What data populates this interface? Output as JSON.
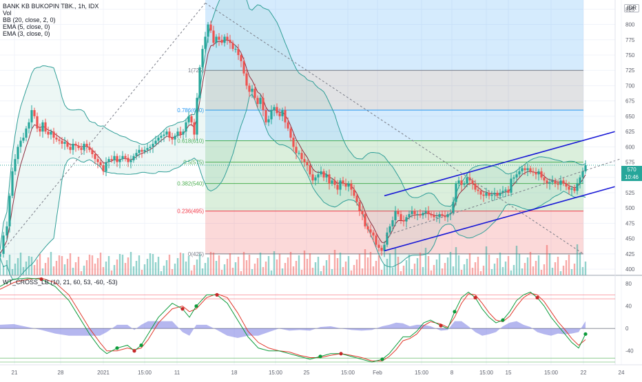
{
  "header": {
    "title": "BANK KB BUKOPIN TBK., 1h, IDX",
    "indicators": [
      "Vol",
      "BB (20, close, 2, 0)",
      "EMA (5, close, 0)",
      "EMA (3, close, 0)"
    ],
    "currency": "IDR",
    "oscillator_label": "WT_CROSS_LB (10, 21, 60, 53, -60, -53)"
  },
  "price_badge": {
    "last_price": "570",
    "countdown": "10:46"
  },
  "colors": {
    "up": "#26a69a",
    "down": "#ef5350",
    "bb": "#2f9e97",
    "bb_fill": "rgba(76,175,160,0.10)",
    "ema5": "#8d2b3d",
    "fib_blue": "rgba(66,165,245,0.22)",
    "fib_gray": "rgba(120,123,134,0.22)",
    "fib_green": "rgba(76,175,80,0.20)",
    "fib_red": "rgba(239,83,80,0.22)",
    "channel": "#1717d6",
    "wt1": "#0b9b3a",
    "wt2": "#e0382b",
    "wt_diff": "rgba(92,96,220,0.45)"
  },
  "chart_data": {
    "type": "candlestick",
    "title": "BANK KB BUKOPIN TBK., 1h, IDX",
    "y_axis": {
      "ticks": [
        400,
        425,
        450,
        475,
        500,
        525,
        550,
        575,
        600,
        625,
        650,
        675,
        700,
        725,
        750,
        775,
        800,
        825
      ],
      "range": [
        390,
        840
      ]
    },
    "x_axis": {
      "ticks": [
        "21",
        "28",
        "2021",
        "15:00",
        "11",
        "18",
        "15:00",
        "25",
        "15:00",
        "Feb",
        "15:00",
        "8",
        "15:00",
        "15",
        "15:00",
        "22",
        "24"
      ]
    },
    "fib_levels": [
      {
        "label": "1(725)",
        "value": 725
      },
      {
        "label": "0.786(660)",
        "value": 660
      },
      {
        "label": "0.618(610)",
        "value": 610
      },
      {
        "label": "0.5(575)",
        "value": 575
      },
      {
        "label": "0.382(540)",
        "value": 540
      },
      {
        "label": "0.236(495)",
        "value": 495
      },
      {
        "label": "0(425)",
        "value": 425
      }
    ],
    "close_path": [
      [
        0,
        425
      ],
      [
        5,
        455
      ],
      [
        10,
        470
      ],
      [
        14,
        520
      ],
      [
        18,
        560
      ],
      [
        22,
        580
      ],
      [
        26,
        600
      ],
      [
        30,
        610
      ],
      [
        34,
        615
      ],
      [
        38,
        630
      ],
      [
        42,
        640
      ],
      [
        46,
        660
      ],
      [
        50,
        650
      ],
      [
        54,
        630
      ],
      [
        58,
        625
      ],
      [
        62,
        640
      ],
      [
        66,
        625
      ],
      [
        70,
        620
      ],
      [
        74,
        625
      ],
      [
        78,
        615
      ],
      [
        82,
        612
      ],
      [
        86,
        610
      ],
      [
        90,
        605
      ],
      [
        94,
        608
      ],
      [
        98,
        600
      ],
      [
        102,
        595
      ],
      [
        106,
        605
      ],
      [
        110,
        602
      ],
      [
        114,
        598
      ],
      [
        118,
        595
      ],
      [
        122,
        605
      ],
      [
        126,
        600
      ],
      [
        130,
        595
      ],
      [
        134,
        588
      ],
      [
        138,
        580
      ],
      [
        142,
        575
      ],
      [
        146,
        570
      ],
      [
        150,
        560
      ],
      [
        154,
        575
      ],
      [
        158,
        580
      ],
      [
        162,
        578
      ],
      [
        166,
        585
      ],
      [
        170,
        575
      ],
      [
        174,
        580
      ],
      [
        178,
        585
      ],
      [
        182,
        582
      ],
      [
        186,
        575
      ],
      [
        190,
        578
      ],
      [
        194,
        585
      ],
      [
        198,
        590
      ],
      [
        202,
        595
      ],
      [
        206,
        592
      ],
      [
        210,
        595
      ],
      [
        214,
        598
      ],
      [
        218,
        600
      ],
      [
        222,
        605
      ],
      [
        226,
        610
      ],
      [
        230,
        615
      ],
      [
        234,
        618
      ],
      [
        238,
        620
      ],
      [
        242,
        625
      ],
      [
        246,
        615
      ],
      [
        250,
        612
      ],
      [
        254,
        618
      ],
      [
        258,
        625
      ],
      [
        262,
        620
      ],
      [
        266,
        625
      ],
      [
        270,
        640
      ],
      [
        274,
        650
      ],
      [
        278,
        640
      ],
      [
        282,
        620
      ],
      [
        286,
        680
      ],
      [
        290,
        730
      ],
      [
        294,
        760
      ],
      [
        298,
        780
      ],
      [
        302,
        800
      ],
      [
        306,
        790
      ],
      [
        310,
        770
      ],
      [
        314,
        780
      ],
      [
        318,
        775
      ],
      [
        322,
        770
      ],
      [
        326,
        780
      ],
      [
        330,
        775
      ],
      [
        334,
        770
      ],
      [
        338,
        760
      ],
      [
        342,
        760
      ],
      [
        346,
        750
      ],
      [
        350,
        740
      ],
      [
        354,
        720
      ],
      [
        358,
        700
      ],
      [
        362,
        690
      ],
      [
        366,
        695
      ],
      [
        370,
        680
      ],
      [
        374,
        670
      ],
      [
        378,
        680
      ],
      [
        382,
        660
      ],
      [
        386,
        640
      ],
      [
        390,
        645
      ],
      [
        394,
        660
      ],
      [
        398,
        665
      ],
      [
        402,
        655
      ],
      [
        406,
        650
      ],
      [
        410,
        660
      ],
      [
        414,
        640
      ],
      [
        418,
        630
      ],
      [
        422,
        615
      ],
      [
        426,
        600
      ],
      [
        430,
        590
      ],
      [
        434,
        590
      ],
      [
        438,
        580
      ],
      [
        442,
        575
      ],
      [
        446,
        570
      ],
      [
        450,
        555
      ],
      [
        454,
        545
      ],
      [
        458,
        550
      ],
      [
        462,
        555
      ],
      [
        466,
        560
      ],
      [
        470,
        550
      ],
      [
        474,
        555
      ],
      [
        478,
        540
      ],
      [
        482,
        545
      ],
      [
        486,
        538
      ],
      [
        490,
        530
      ],
      [
        494,
        545
      ],
      [
        498,
        540
      ],
      [
        502,
        535
      ],
      [
        506,
        540
      ],
      [
        510,
        530
      ],
      [
        514,
        520
      ],
      [
        518,
        510
      ],
      [
        522,
        495
      ],
      [
        526,
        490
      ],
      [
        530,
        470
      ],
      [
        534,
        465
      ],
      [
        538,
        460
      ],
      [
        542,
        455
      ],
      [
        546,
        440
      ],
      [
        550,
        435
      ],
      [
        554,
        430
      ],
      [
        558,
        440
      ],
      [
        562,
        460
      ],
      [
        566,
        470
      ],
      [
        570,
        480
      ],
      [
        574,
        495
      ],
      [
        578,
        490
      ],
      [
        582,
        480
      ],
      [
        586,
        478
      ],
      [
        590,
        485
      ],
      [
        594,
        490
      ],
      [
        598,
        495
      ],
      [
        602,
        490
      ],
      [
        606,
        490
      ],
      [
        610,
        488
      ],
      [
        614,
        492
      ],
      [
        618,
        495
      ],
      [
        622,
        490
      ],
      [
        626,
        488
      ],
      [
        630,
        485
      ],
      [
        634,
        485
      ],
      [
        638,
        490
      ],
      [
        642,
        488
      ],
      [
        646,
        485
      ],
      [
        650,
        490
      ],
      [
        654,
        492
      ],
      [
        658,
        510
      ],
      [
        662,
        540
      ],
      [
        666,
        545
      ],
      [
        670,
        538
      ],
      [
        674,
        540
      ],
      [
        678,
        550
      ],
      [
        682,
        545
      ],
      [
        686,
        540
      ],
      [
        690,
        530
      ],
      [
        694,
        528
      ],
      [
        698,
        522
      ],
      [
        702,
        520
      ],
      [
        706,
        525
      ],
      [
        710,
        520
      ],
      [
        714,
        522
      ],
      [
        718,
        525
      ],
      [
        722,
        520
      ],
      [
        726,
        525
      ],
      [
        730,
        528
      ],
      [
        734,
        530
      ],
      [
        738,
        525
      ],
      [
        742,
        548
      ],
      [
        746,
        550
      ],
      [
        750,
        555
      ],
      [
        754,
        560
      ],
      [
        758,
        565
      ],
      [
        762,
        562
      ],
      [
        766,
        565
      ],
      [
        770,
        560
      ],
      [
        774,
        558
      ],
      [
        778,
        555
      ],
      [
        782,
        560
      ],
      [
        786,
        550
      ],
      [
        790,
        545
      ],
      [
        794,
        540
      ],
      [
        798,
        542
      ],
      [
        802,
        545
      ],
      [
        806,
        540
      ],
      [
        810,
        538
      ],
      [
        814,
        545
      ],
      [
        818,
        540
      ],
      [
        822,
        535
      ],
      [
        826,
        530
      ],
      [
        830,
        532
      ],
      [
        834,
        528
      ],
      [
        838,
        540
      ],
      [
        842,
        550
      ],
      [
        846,
        560
      ],
      [
        850,
        570
      ]
    ],
    "channel_upper": [
      [
        558,
        520
      ],
      [
        893,
        625
      ]
    ],
    "channel_lower": [
      [
        558,
        430
      ],
      [
        893,
        535
      ]
    ],
    "oscillator": {
      "range": [
        -60,
        90
      ],
      "ticks": [
        80,
        40,
        0,
        -40
      ],
      "levels": [
        60,
        53,
        -60,
        -53
      ],
      "wt1_path": [
        [
          0,
          75
        ],
        [
          20,
          88
        ],
        [
          40,
          90
        ],
        [
          60,
          88
        ],
        [
          80,
          75
        ],
        [
          100,
          50
        ],
        [
          115,
          20
        ],
        [
          130,
          -10
        ],
        [
          145,
          -35
        ],
        [
          155,
          -45
        ],
        [
          170,
          -35
        ],
        [
          185,
          -30
        ],
        [
          195,
          -40
        ],
        [
          205,
          -30
        ],
        [
          215,
          -10
        ],
        [
          230,
          20
        ],
        [
          250,
          45
        ],
        [
          265,
          35
        ],
        [
          275,
          20
        ],
        [
          285,
          40
        ],
        [
          300,
          60
        ],
        [
          315,
          60
        ],
        [
          330,
          45
        ],
        [
          345,
          15
        ],
        [
          360,
          -15
        ],
        [
          375,
          -35
        ],
        [
          390,
          -40
        ],
        [
          405,
          -40
        ],
        [
          420,
          -45
        ],
        [
          435,
          -50
        ],
        [
          450,
          -55
        ],
        [
          465,
          -50
        ],
        [
          480,
          -45
        ],
        [
          495,
          -45
        ],
        [
          510,
          -50
        ],
        [
          525,
          -55
        ],
        [
          540,
          -60
        ],
        [
          555,
          -55
        ],
        [
          565,
          -45
        ],
        [
          575,
          -30
        ],
        [
          585,
          -15
        ],
        [
          595,
          -15
        ],
        [
          605,
          -5
        ],
        [
          615,
          10
        ],
        [
          625,
          15
        ],
        [
          640,
          5
        ],
        [
          650,
          0
        ],
        [
          660,
          30
        ],
        [
          670,
          55
        ],
        [
          680,
          65
        ],
        [
          690,
          55
        ],
        [
          700,
          35
        ],
        [
          710,
          20
        ],
        [
          720,
          10
        ],
        [
          730,
          15
        ],
        [
          740,
          30
        ],
        [
          750,
          50
        ],
        [
          760,
          60
        ],
        [
          770,
          65
        ],
        [
          780,
          55
        ],
        [
          790,
          40
        ],
        [
          800,
          20
        ],
        [
          810,
          5
        ],
        [
          820,
          -10
        ],
        [
          830,
          -25
        ],
        [
          840,
          -35
        ],
        [
          850,
          -10
        ]
      ],
      "wt2_path": [
        [
          0,
          70
        ],
        [
          20,
          82
        ],
        [
          40,
          88
        ],
        [
          60,
          90
        ],
        [
          80,
          82
        ],
        [
          100,
          60
        ],
        [
          115,
          30
        ],
        [
          130,
          0
        ],
        [
          145,
          -25
        ],
        [
          155,
          -40
        ],
        [
          170,
          -40
        ],
        [
          185,
          -35
        ],
        [
          195,
          -38
        ],
        [
          205,
          -35
        ],
        [
          215,
          -20
        ],
        [
          230,
          10
        ],
        [
          250,
          35
        ],
        [
          265,
          40
        ],
        [
          275,
          30
        ],
        [
          285,
          35
        ],
        [
          300,
          55
        ],
        [
          315,
          62
        ],
        [
          330,
          55
        ],
        [
          345,
          28
        ],
        [
          360,
          -5
        ],
        [
          375,
          -25
        ],
        [
          390,
          -35
        ],
        [
          405,
          -40
        ],
        [
          420,
          -42
        ],
        [
          435,
          -48
        ],
        [
          450,
          -52
        ],
        [
          465,
          -52
        ],
        [
          480,
          -48
        ],
        [
          495,
          -45
        ],
        [
          510,
          -48
        ],
        [
          525,
          -52
        ],
        [
          540,
          -58
        ],
        [
          555,
          -58
        ],
        [
          565,
          -50
        ],
        [
          575,
          -38
        ],
        [
          585,
          -22
        ],
        [
          595,
          -18
        ],
        [
          605,
          -10
        ],
        [
          615,
          5
        ],
        [
          625,
          12
        ],
        [
          640,
          8
        ],
        [
          650,
          2
        ],
        [
          660,
          20
        ],
        [
          670,
          45
        ],
        [
          680,
          62
        ],
        [
          690,
          60
        ],
        [
          700,
          45
        ],
        [
          710,
          28
        ],
        [
          720,
          15
        ],
        [
          730,
          12
        ],
        [
          740,
          22
        ],
        [
          750,
          40
        ],
        [
          760,
          55
        ],
        [
          770,
          63
        ],
        [
          780,
          60
        ],
        [
          790,
          48
        ],
        [
          800,
          30
        ],
        [
          810,
          12
        ],
        [
          820,
          -2
        ],
        [
          830,
          -18
        ],
        [
          840,
          -30
        ],
        [
          850,
          -20
        ]
      ]
    }
  }
}
